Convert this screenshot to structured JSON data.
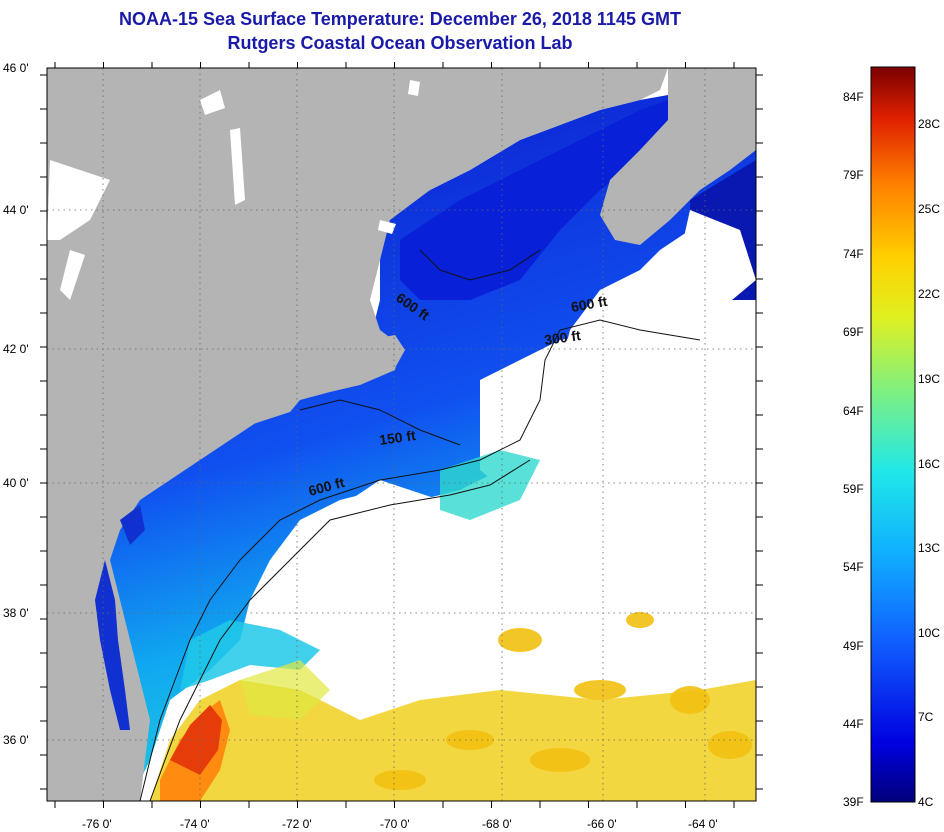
{
  "title": "NOAA-15 Sea Surface Temperature:  December 26, 2018 1145 GMT",
  "subtitle": "Rutgers Coastal Ocean Observation Lab",
  "latitude_labels": [
    "46 0'",
    "44 0'",
    "42 0'",
    "40 0'",
    "38 0'",
    "36 0'"
  ],
  "longitude_labels": [
    "-76 0'",
    "-74 0'",
    "-72 0'",
    "-70 0'",
    "-68 0'",
    "-66 0'",
    "-64 0'"
  ],
  "contour_labels": [
    "600 ft",
    "600 ft",
    "300 ft",
    "150 ft",
    "600 ft"
  ],
  "colorbar": {
    "fahrenheit": [
      "84F",
      "79F",
      "74F",
      "69F",
      "64F",
      "59F",
      "54F",
      "49F",
      "44F",
      "39F"
    ],
    "celsius": [
      "28C",
      "25C",
      "22C",
      "19C",
      "16C",
      "13C",
      "10C",
      "7C",
      "4C"
    ]
  },
  "colors": {
    "land": "#b4b4b4",
    "cloud": "#ffffff",
    "title": "#1a1aa8",
    "cold": "#0a14c8",
    "warm": "#e63c0a"
  }
}
